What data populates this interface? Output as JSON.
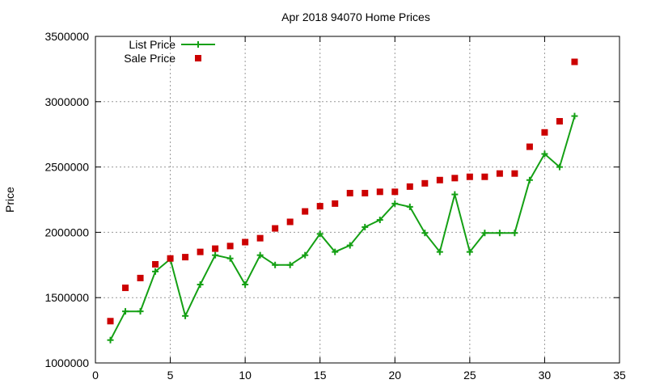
{
  "chart_data": {
    "type": "line",
    "title": "Apr 2018 94070 Home Prices",
    "xlabel": "",
    "ylabel": "Price",
    "xlim": [
      0,
      35
    ],
    "ylim": [
      1000000,
      3500000
    ],
    "x_ticks": [
      0,
      5,
      10,
      15,
      20,
      25,
      30,
      35
    ],
    "y_ticks": [
      1000000,
      1500000,
      2000000,
      2500000,
      3000000,
      3500000
    ],
    "grid": true,
    "legend_position": "top-left",
    "series": [
      {
        "name": "List Price",
        "style": "line-plus",
        "color": "#14a014",
        "x": [
          1,
          2,
          3,
          4,
          5,
          6,
          7,
          8,
          9,
          10,
          11,
          12,
          13,
          14,
          15,
          16,
          17,
          18,
          19,
          20,
          21,
          22,
          23,
          24,
          25,
          26,
          27,
          28,
          29,
          30,
          31,
          32
        ],
        "values": [
          1175000,
          1395000,
          1395000,
          1700000,
          1795000,
          1360000,
          1600000,
          1825000,
          1800000,
          1600000,
          1825000,
          1750000,
          1750000,
          1825000,
          1988000,
          1850000,
          1900000,
          2040000,
          2095000,
          2220000,
          2195000,
          1995000,
          1850000,
          2290000,
          1850000,
          1995000,
          1995000,
          1995000,
          2400000,
          2600000,
          2500000,
          2890000
        ]
      },
      {
        "name": "Sale Price",
        "style": "square-points",
        "color": "#cc0000",
        "x": [
          1,
          2,
          3,
          4,
          5,
          6,
          7,
          8,
          9,
          10,
          11,
          12,
          13,
          14,
          15,
          16,
          17,
          18,
          19,
          20,
          21,
          22,
          23,
          24,
          25,
          26,
          27,
          28,
          29,
          30,
          31,
          32
        ],
        "values": [
          1320000,
          1575000,
          1650000,
          1755000,
          1800000,
          1810000,
          1850000,
          1875000,
          1895000,
          1925000,
          1955000,
          2030000,
          2080000,
          2160000,
          2200000,
          2220000,
          2300000,
          2300000,
          2310000,
          2310000,
          2350000,
          2375000,
          2400000,
          2415000,
          2425000,
          2425000,
          2450000,
          2450000,
          2655000,
          2765000,
          2850000,
          3305000
        ]
      }
    ]
  }
}
